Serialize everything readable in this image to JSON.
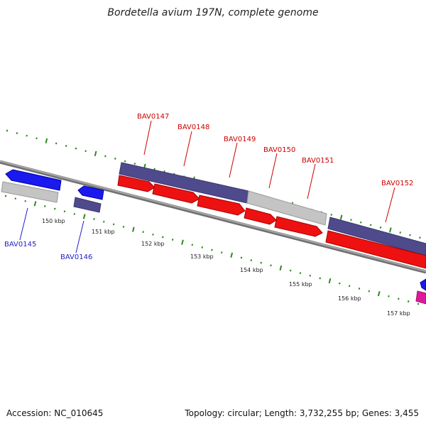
{
  "title": "Bordetella avium 197N, complete genome",
  "footer": {
    "accession": "Accession: NC_010645",
    "summary": "Topology: circular; Length: 3,732,255 bp; Genes: 3,455"
  },
  "colors": {
    "backbone": "#8c8c8c",
    "tick": "#2d8a1e",
    "gene_label_red": "#cc0000",
    "gene_label_blue": "#1f1fcc",
    "cds_red": "#ee1111",
    "cds_blue": "#1a1aee",
    "gene_purple": "#4f4a8c",
    "gene_gray": "#c4c4c4",
    "gene_pink": "#e0189a"
  },
  "scale_labels": [
    "150 kbp",
    "151 kbp",
    "152 kbp",
    "153 kbp",
    "154 kbp",
    "155 kbp",
    "156 kbp",
    "157 kbp"
  ],
  "gene_labels": [
    {
      "text": "BAV0145",
      "color": "blue"
    },
    {
      "text": "BAV0146",
      "color": "blue"
    },
    {
      "text": "BAV0147",
      "color": "red"
    },
    {
      "text": "BAV0148",
      "color": "red"
    },
    {
      "text": "BAV0149",
      "color": "red"
    },
    {
      "text": "BAV0150",
      "color": "red"
    },
    {
      "text": "BAV0151",
      "color": "red"
    },
    {
      "text": "BAV0152",
      "color": "red"
    }
  ]
}
